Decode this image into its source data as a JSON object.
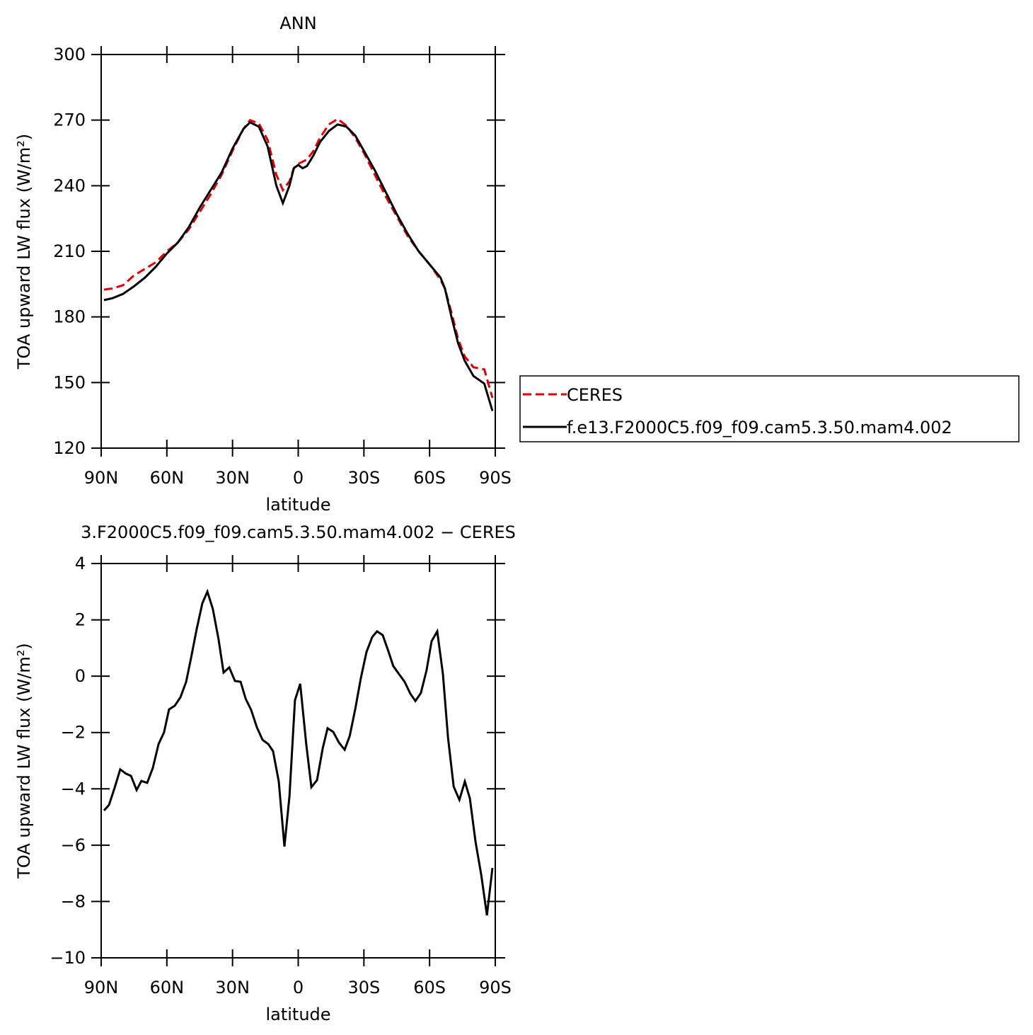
{
  "chart_data": [
    {
      "type": "line",
      "title": "ANN",
      "xlabel": "latitude",
      "ylabel": "TOA upward LW flux (W/m²)",
      "xlim": [
        90,
        -90
      ],
      "ylim": [
        120,
        300
      ],
      "xticks": [
        {
          "value": 90,
          "label": "90N"
        },
        {
          "value": 60,
          "label": "60N"
        },
        {
          "value": 30,
          "label": "30N"
        },
        0,
        {
          "value": -30,
          "label": "30S"
        },
        {
          "value": -60,
          "label": "60S"
        },
        {
          "value": -90,
          "label": "90S"
        }
      ],
      "yticks": [
        120,
        150,
        180,
        210,
        240,
        270,
        300
      ],
      "legend": "right",
      "x": [
        88.7,
        85,
        80,
        75,
        70,
        65,
        60,
        55,
        50,
        45,
        40,
        35,
        30,
        25,
        22,
        18,
        14,
        10,
        7,
        4,
        2,
        0,
        -2,
        -4,
        -7,
        -10,
        -14,
        -18,
        -22,
        -26,
        -30,
        -35,
        -40,
        -45,
        -50,
        -55,
        -60,
        -65,
        -67,
        -70,
        -73,
        -76,
        -80,
        -85,
        -88.7
      ],
      "series": [
        {
          "name": "CERES",
          "color": "#e00000",
          "dash": true,
          "values": [
            192.5,
            193,
            194.5,
            199,
            202,
            205,
            210,
            214,
            220,
            228,
            236,
            245,
            256,
            266,
            270,
            268.5,
            261,
            245,
            238,
            242,
            248,
            250,
            251,
            252,
            256,
            262,
            268,
            270.5,
            267.5,
            262,
            255,
            245,
            235,
            226,
            217,
            210,
            204,
            197,
            193,
            182,
            170,
            162,
            157,
            156,
            143
          ]
        },
        {
          "name": "f.e13.F2000C5.f09_f09.cam5.3.50.mam4.002",
          "color": "#000000",
          "dash": false,
          "values": [
            187.7,
            188.5,
            190.5,
            194,
            198,
            203,
            209,
            214,
            221,
            230,
            238,
            246,
            257,
            266,
            269,
            267,
            258,
            240,
            232,
            240,
            248,
            249.5,
            248,
            249,
            254,
            260,
            265,
            268,
            267,
            263,
            256,
            247,
            237,
            227,
            218,
            210,
            204,
            198,
            193,
            180,
            168,
            160,
            153,
            149.5,
            137
          ]
        }
      ]
    },
    {
      "type": "line",
      "title": "3.F2000C5.f09_f09.cam5.3.50.mam4.002 − CERES",
      "xlabel": "latitude",
      "ylabel": "TOA upward LW flux (W/m²)",
      "xlim": [
        90,
        -90
      ],
      "ylim": [
        -10,
        4
      ],
      "xticks": [
        {
          "value": 90,
          "label": "90N"
        },
        {
          "value": 60,
          "label": "60N"
        },
        {
          "value": 30,
          "label": "30N"
        },
        0,
        {
          "value": -30,
          "label": "30S"
        },
        {
          "value": -60,
          "label": "60S"
        },
        {
          "value": -90,
          "label": "90S"
        }
      ],
      "yticks": [
        {
          "value": -10,
          "label": "−10"
        },
        {
          "value": -8,
          "label": "−8"
        },
        {
          "value": -6,
          "label": "−6"
        },
        {
          "value": -4,
          "label": "−4"
        },
        {
          "value": -2,
          "label": "−2"
        },
        0,
        2,
        4
      ],
      "x": [
        88.7,
        86.4,
        83.9,
        81.3,
        78.7,
        76.4,
        73.8,
        71.6,
        69,
        66.4,
        63.8,
        61.3,
        59,
        56.4,
        53.8,
        51.2,
        49,
        46.4,
        43.8,
        41.5,
        39,
        36.4,
        34.1,
        31.5,
        28.9,
        26.3,
        24,
        21.5,
        18.9,
        16.3,
        13.7,
        11.5,
        8.9,
        6.3,
        4,
        1.5,
        -0.9,
        -3.7,
        -6,
        -8.6,
        -11.2,
        -13.4,
        -16,
        -18.6,
        -21.2,
        -23.5,
        -26,
        -28.6,
        -31.2,
        -33.8,
        -36,
        -38.6,
        -41.2,
        -43.4,
        -46,
        -48.6,
        -51.2,
        -53.5,
        -56,
        -58.6,
        -60.9,
        -63.5,
        -66.1,
        -68.4,
        -71,
        -73.6,
        -76.1,
        -78.4,
        -81,
        -83.6,
        -86.2,
        -88.7
      ],
      "series": [
        {
          "color": "#000000",
          "values": [
            -4.77,
            -4.57,
            -3.97,
            -3.31,
            -3.46,
            -3.54,
            -4.04,
            -3.72,
            -3.79,
            -3.26,
            -2.41,
            -2.0,
            -1.18,
            -1.05,
            -0.75,
            -0.2,
            0.63,
            1.66,
            2.59,
            3.0,
            2.39,
            1.31,
            0.13,
            0.31,
            -0.17,
            -0.2,
            -0.8,
            -1.2,
            -1.81,
            -2.26,
            -2.41,
            -2.66,
            -3.74,
            -6.05,
            -4.27,
            -0.85,
            -0.27,
            -2.43,
            -3.94,
            -3.69,
            -2.55,
            -1.85,
            -1.98,
            -2.36,
            -2.61,
            -2.13,
            -1.18,
            -0.07,
            0.86,
            1.39,
            1.59,
            1.46,
            0.88,
            0.36,
            0.08,
            -0.2,
            -0.62,
            -0.88,
            -0.6,
            0.2,
            1.24,
            1.59,
            0.08,
            -2.18,
            -3.92,
            -4.39,
            -3.74,
            -4.34,
            -5.88,
            -7.06,
            -8.49,
            -6.81
          ]
        }
      ]
    }
  ]
}
